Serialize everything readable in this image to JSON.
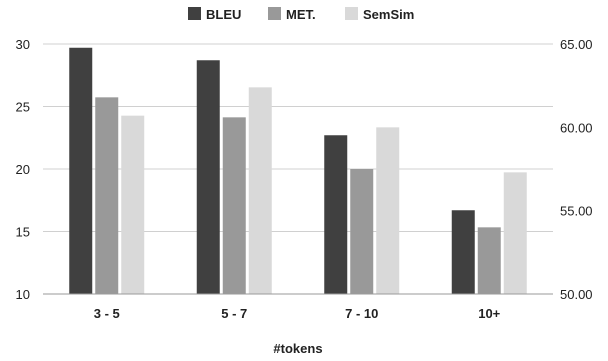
{
  "chart_data": {
    "type": "bar",
    "xlabel": "#tokens",
    "categories": [
      "3 - 5",
      "5 - 7",
      "7 - 10",
      "10+"
    ],
    "series": [
      {
        "name": "BLEU",
        "axis": "left",
        "color": "#404040",
        "values": [
          29.7,
          28.7,
          22.7,
          16.7
        ]
      },
      {
        "name": "MET.",
        "axis": "right",
        "color": "#999999",
        "values": [
          61.8,
          60.6,
          57.5,
          54.0
        ]
      },
      {
        "name": "SemSim",
        "axis": "right",
        "color": "#d9d9d9",
        "values": [
          60.7,
          62.4,
          60.0,
          57.3
        ]
      }
    ],
    "y_left": {
      "min": 10,
      "max": 30,
      "ticks": [
        "10",
        "15",
        "20",
        "25",
        "30"
      ]
    },
    "y_right": {
      "min": 50,
      "max": 65,
      "ticks": [
        "50.00",
        "55.00",
        "60.00",
        "65.00"
      ]
    },
    "legend_position": "top-center",
    "grid": true
  }
}
